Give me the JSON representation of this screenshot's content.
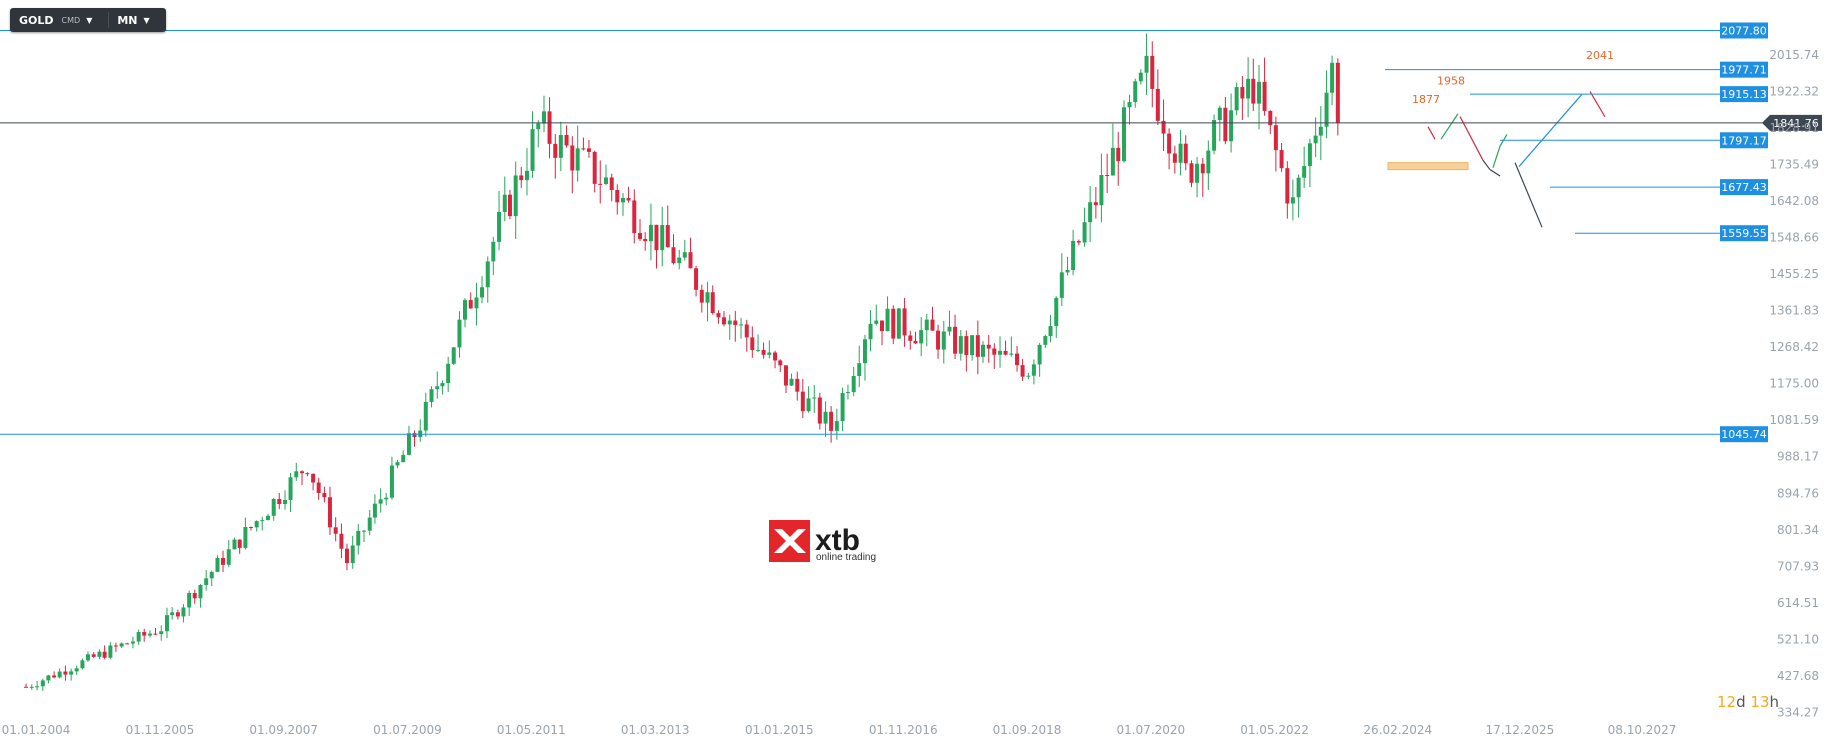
{
  "toolbar": {
    "symbol": "GOLD",
    "type": "CMD",
    "interval": "MN"
  },
  "timer": {
    "days": "12",
    "d": "d",
    "hours": "13",
    "h": "h"
  },
  "watermark": {
    "brand": "xtb",
    "tagline": "online trading",
    "color": "#e4252a"
  },
  "colors": {
    "up": "#26a65b",
    "down": "#d9263f",
    "level": "#1e8fe1",
    "current": "#3d4752",
    "accent": "#e8662a",
    "zone": "#f7c889"
  },
  "chart_data": {
    "type": "candlestick",
    "symbol": "GOLD",
    "interval": "MN",
    "current_price": 1841.76,
    "y_axis": {
      "range": [
        334.27,
        2077.8
      ],
      "ticks": [
        "2015.74",
        "1922.32",
        "1828.91",
        "1735.49",
        "1642.08",
        "1548.66",
        "1455.25",
        "1361.83",
        "1268.42",
        "1175.00",
        "1081.59",
        "988.17",
        "894.76",
        "801.34",
        "707.93",
        "614.51",
        "521.10",
        "427.68",
        "334.27"
      ]
    },
    "x_axis": {
      "ticks": [
        "01.01.2004",
        "01.11.2005",
        "01.09.2007",
        "01.07.2009",
        "01.05.2011",
        "01.03.2013",
        "01.01.2015",
        "01.11.2016",
        "01.09.2018",
        "01.07.2020",
        "01.05.2022",
        "26.02.2024",
        "17.12.2025",
        "08.10.2027"
      ]
    },
    "levels": [
      {
        "label": "2077.80",
        "value": 2077.8
      },
      {
        "label": "1977.71",
        "value": 1977.71
      },
      {
        "label": "1915.13",
        "value": 1915.13
      },
      {
        "label": "1797.17",
        "value": 1797.17
      },
      {
        "label": "1677.43",
        "value": 1677.43
      },
      {
        "label": "1559.55",
        "value": 1559.55
      },
      {
        "label": "1045.74",
        "value": 1045.74
      }
    ],
    "annotations": [
      "1958",
      "1877",
      "2041"
    ],
    "key_closes": [
      {
        "date": "01.01.2004",
        "close": 400
      },
      {
        "date": "01.01.2006",
        "close": 550
      },
      {
        "date": "01.03.2008",
        "close": 970
      },
      {
        "date": "01.10.2008",
        "close": 720
      },
      {
        "date": "01.12.2009",
        "close": 1100
      },
      {
        "date": "01.08.2011",
        "close": 1830
      },
      {
        "date": "01.08.2012",
        "close": 1690
      },
      {
        "date": "01.12.2015",
        "close": 1060
      },
      {
        "date": "01.07.2016",
        "close": 1350
      },
      {
        "date": "01.11.2018",
        "close": 1215
      },
      {
        "date": "01.08.2020",
        "close": 1970
      },
      {
        "date": "01.03.2021",
        "close": 1710
      },
      {
        "date": "01.03.2022",
        "close": 1940
      },
      {
        "date": "01.10.2022",
        "close": 1630
      },
      {
        "date": "01.05.2023",
        "close": 1980
      },
      {
        "date": "01.06.2023",
        "close": 1841.76
      }
    ]
  }
}
